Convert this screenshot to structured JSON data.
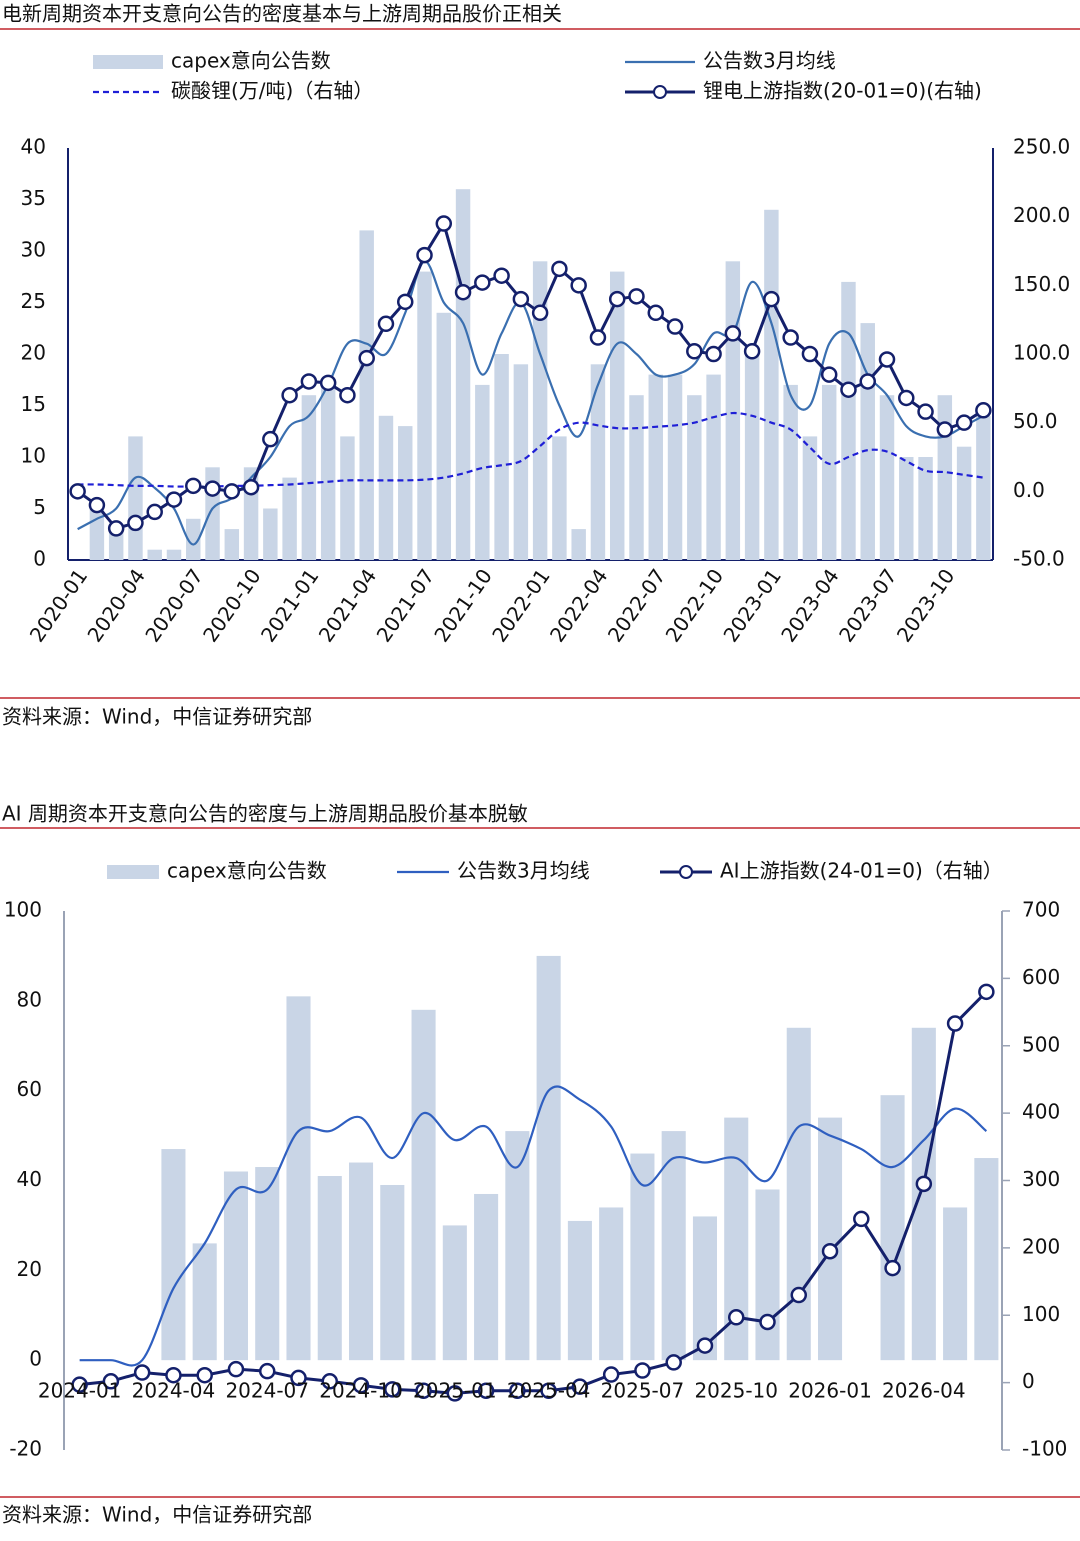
{
  "chart_data": [
    {
      "type": "combo",
      "title": "电新周期资本开支意向公告的密度基本与上游周期品股价正相关",
      "source": "资料来源：Wind，中信证券研究部",
      "categories": [
        "2020-01",
        null,
        null,
        "2020-04",
        null,
        null,
        "2020-07",
        null,
        null,
        "2020-10",
        null,
        null,
        "2021-01",
        null,
        null,
        "2021-04",
        null,
        null,
        "2021-07",
        null,
        null,
        "2021-10",
        null,
        null,
        "2022-01",
        null,
        null,
        "2022-04",
        null,
        null,
        "2022-07",
        null,
        null,
        "2022-10",
        null,
        null,
        "2023-01",
        null,
        null,
        "2023-04",
        null,
        null,
        "2023-07",
        null,
        null,
        "2023-10",
        null,
        null
      ],
      "ylim": [
        0,
        40
      ],
      "yticks": [
        0,
        5,
        10,
        15,
        20,
        25,
        30,
        35,
        40
      ],
      "y2lim": [
        -50,
        250
      ],
      "y2ticks": [
        {
          "value": -50,
          "label": "-50.0"
        },
        {
          "value": 0,
          "label": "0.0"
        },
        {
          "value": 50,
          "label": "50.0"
        },
        {
          "value": 100,
          "label": "100.0"
        },
        {
          "value": 150,
          "label": "150.0"
        },
        {
          "value": 200,
          "label": "200.0"
        },
        {
          "value": 250,
          "label": "250.0"
        }
      ],
      "x_label_rotation": -55,
      "grid": false,
      "series": [
        {
          "name": "capex意向公告数",
          "type": "bar",
          "color": "#c9d5e6",
          "values": [
            0,
            5,
            3,
            12,
            1,
            1,
            4,
            9,
            3,
            9,
            5,
            8,
            16,
            17,
            12,
            32,
            14,
            13,
            28,
            24,
            36,
            17,
            20,
            19,
            29,
            12,
            3,
            19,
            28,
            16,
            18,
            18,
            16,
            18,
            29,
            20,
            34,
            17,
            12,
            17,
            27,
            23,
            16,
            10,
            10,
            16,
            11,
            14
          ]
        },
        {
          "name": "公告数3月均线",
          "type": "line",
          "color": "#3a6fb0",
          "smooth": true,
          "values": [
            3,
            4,
            5,
            8,
            7,
            5,
            1.5,
            5,
            6,
            8,
            10,
            13,
            14,
            17,
            21,
            21,
            20,
            24,
            29,
            25,
            23,
            18,
            22,
            25,
            20,
            15,
            12,
            17,
            21,
            20,
            18,
            18,
            19,
            22,
            22,
            27,
            23,
            16,
            15,
            21,
            22,
            18,
            16,
            13,
            12,
            12,
            13,
            14
          ]
        },
        {
          "name": "碳酸锂(万/吨)（右轴）",
          "type": "line",
          "axis": "y2",
          "color": "#1f1fd6",
          "dashed": true,
          "smooth": true,
          "values": [
            5,
            5,
            4.5,
            4,
            4,
            3.5,
            3.5,
            3.5,
            4,
            4,
            4.5,
            5,
            6,
            7,
            8,
            8,
            8,
            8,
            8.5,
            10,
            13,
            17,
            19,
            22,
            33,
            45,
            50,
            48,
            46,
            46,
            47,
            48,
            50,
            54,
            57,
            55,
            50,
            45,
            32,
            20,
            25,
            30,
            29,
            22,
            15,
            14,
            12,
            10
          ]
        },
        {
          "name": "锂电上游指数(20-01=0)(右轴)",
          "type": "line",
          "axis": "y2",
          "color": "#14206b",
          "marker": "circle",
          "values": [
            0,
            -10,
            -27,
            -23,
            -15,
            -6,
            4,
            2,
            0,
            3,
            38,
            70,
            80,
            79,
            70,
            97,
            122,
            138,
            172,
            195,
            145,
            152,
            157,
            140,
            130,
            162,
            150,
            112,
            140,
            142,
            130,
            120,
            102,
            100,
            115,
            102,
            140,
            112,
            100,
            85,
            74,
            80,
            96,
            68,
            58,
            45,
            50,
            59
          ]
        }
      ]
    },
    {
      "type": "combo",
      "title": "AI 周期资本开支意向公告的密度与上游周期品股价基本脱敏",
      "source": "资料来源：Wind，中信证券研究部",
      "categories": [
        "2024-01",
        null,
        null,
        "2024-04",
        null,
        null,
        "2024-07",
        null,
        null,
        "2024-10",
        null,
        null,
        "2025-01",
        null,
        null,
        "2025-04",
        null,
        null,
        "2025-07",
        null,
        null,
        "2025-10",
        null,
        null,
        "2026-01",
        null,
        null,
        "2026-04",
        null,
        null
      ],
      "ylim": [
        -20,
        100
      ],
      "yticks": [
        -20,
        0,
        20,
        40,
        60,
        80,
        100
      ],
      "y2lim": [
        -100,
        700
      ],
      "y2ticks": [
        -100,
        0,
        100,
        200,
        300,
        400,
        500,
        600,
        700
      ],
      "x_label_rotation": 0,
      "grid": false,
      "series": [
        {
          "name": "capex意向公告数",
          "type": "bar",
          "color": "#c9d5e6",
          "values": [
            0,
            0,
            0,
            47,
            26,
            42,
            43,
            81,
            41,
            44,
            39,
            78,
            30,
            37,
            51,
            90,
            31,
            34,
            46,
            51,
            32,
            54,
            38,
            74,
            54,
            0,
            59,
            74,
            34,
            45
          ]
        },
        {
          "name": "公告数3月均线",
          "type": "line",
          "color": "#2f5fc0",
          "smooth": true,
          "values": [
            0,
            0,
            0,
            16,
            26,
            38,
            38,
            51,
            51,
            54,
            45,
            55,
            49,
            52,
            43,
            60,
            58,
            52,
            39,
            45,
            44,
            45,
            40,
            52,
            50,
            47,
            43,
            49,
            56,
            51
          ]
        },
        {
          "name": "AI上游指数(24-01=0)（右轴）",
          "type": "line",
          "axis": "y2",
          "color": "#14206b",
          "marker": "circle",
          "values": [
            -3,
            2,
            15,
            11,
            11,
            20,
            17,
            7,
            2,
            -4,
            -10,
            -12,
            -16,
            -12,
            -12,
            -12,
            -6,
            12,
            18,
            30,
            55,
            97,
            90,
            130,
            195,
            243,
            170,
            295,
            533,
            580
          ]
        }
      ]
    }
  ]
}
